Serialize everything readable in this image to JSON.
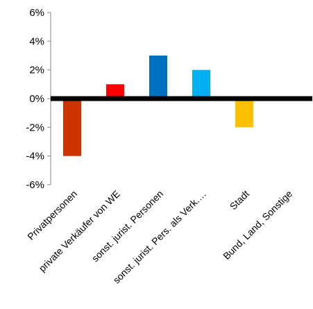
{
  "chart_data": {
    "type": "bar",
    "categories": [
      "Privatpersonen",
      "private Verkäufer von WE",
      "sonst. jurist. Personen",
      "sonst. jurist. Pers. als Verk.…",
      "Stadt",
      "Bund, Land, Sonstige"
    ],
    "values": [
      -4,
      1,
      3,
      2,
      -2,
      0
    ],
    "colors": [
      "#CC3300",
      "#FF0000",
      "#0070C0",
      "#00B0F0",
      "#FFC000",
      "#A0A0A0"
    ],
    "y_ticks": [
      "6%",
      "4%",
      "2%",
      "0%",
      "-2%",
      "-4%",
      "-6%"
    ],
    "ylim": [
      -6,
      6
    ],
    "title": "",
    "xlabel": "",
    "ylabel": "",
    "grid": false,
    "legend": "none"
  }
}
